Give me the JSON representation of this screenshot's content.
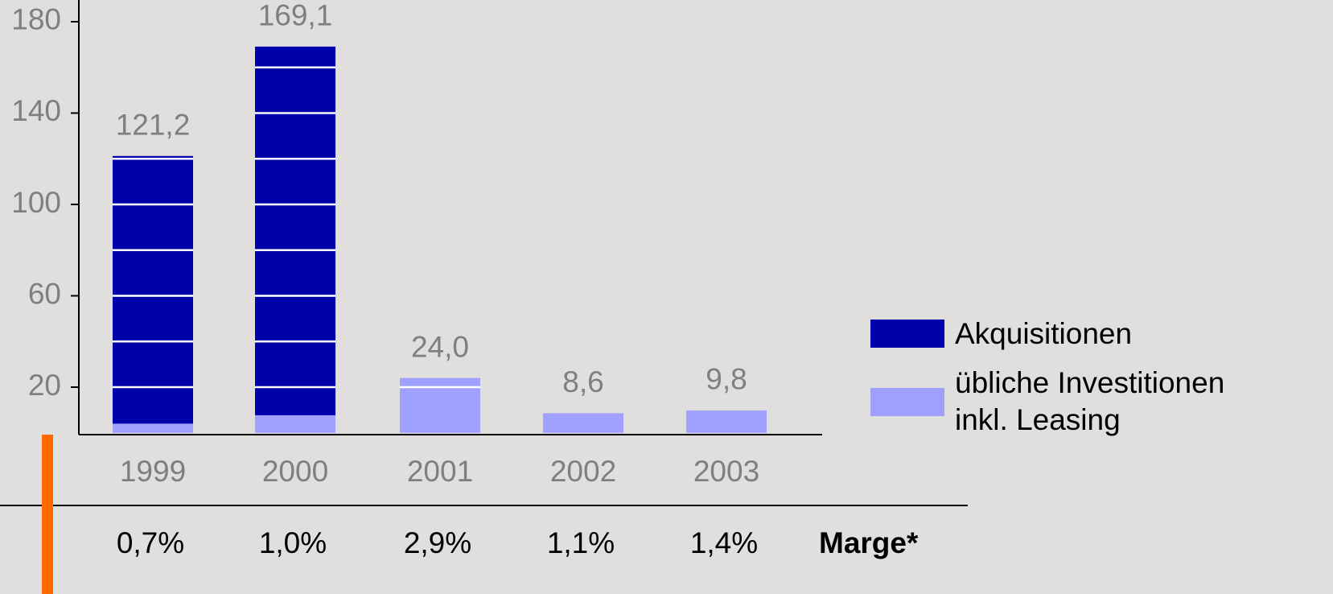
{
  "chart_data": {
    "type": "bar",
    "stacked": true,
    "categories": [
      "1999",
      "2000",
      "2001",
      "2002",
      "2003"
    ],
    "series": [
      {
        "name": "übliche Investitionen\ninkl. Leasing",
        "color": "#a0a0ff",
        "values": [
          4,
          7.7,
          24,
          8.6,
          9.8
        ]
      },
      {
        "name": "Akquisitionen",
        "color": "#0000aa",
        "values": [
          117.2,
          161.4,
          0,
          0,
          0
        ]
      }
    ],
    "totals": [
      121.2,
      169.1,
      24.0,
      8.6,
      9.8
    ],
    "total_labels": [
      "121,2",
      "169,1",
      "24,0",
      "8,6",
      "9,8"
    ],
    "ylim": [
      0,
      189.5
    ],
    "yticks": [
      20,
      60,
      100,
      140,
      180
    ],
    "grid_lines": [
      20,
      40,
      60,
      80,
      100,
      120,
      140,
      160
    ],
    "margin_row": {
      "label": "Marge*",
      "values": [
        0.7,
        1.0,
        2.9,
        1.1,
        1.4
      ],
      "value_labels": [
        "0,7%",
        "1,0%",
        "2,9%",
        "1,1%",
        "1,4%"
      ]
    }
  }
}
